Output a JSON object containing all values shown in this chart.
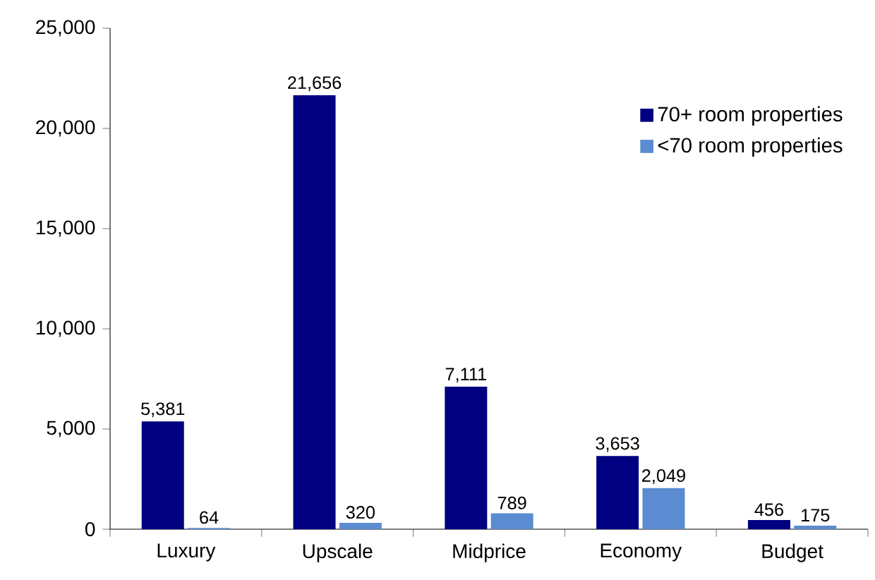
{
  "chart_data": {
    "type": "bar",
    "categories": [
      "Luxury",
      "Upscale",
      "Midprice",
      "Economy",
      "Budget"
    ],
    "series": [
      {
        "name": "70+ room properties",
        "color": "#000080",
        "values": [
          5381,
          21656,
          7111,
          3653,
          456
        ],
        "value_labels": [
          "5,381",
          "21,656",
          "7,111",
          "3,653",
          "456"
        ]
      },
      {
        "name": "<70 room properties",
        "color": "#5b8bd0",
        "values": [
          64,
          320,
          789,
          2049,
          175
        ],
        "value_labels": [
          "64",
          "320",
          "789",
          "2,049",
          "175"
        ]
      }
    ],
    "ylim": [
      0,
      25000
    ],
    "yticks": [
      {
        "value": 0,
        "label": "0"
      },
      {
        "value": 5000,
        "label": "5,000"
      },
      {
        "value": 10000,
        "label": "10,000"
      },
      {
        "value": 15000,
        "label": "15,000"
      },
      {
        "value": 20000,
        "label": "20,000"
      },
      {
        "value": 25000,
        "label": "25,000"
      }
    ],
    "legend": "top right",
    "grid": false
  }
}
